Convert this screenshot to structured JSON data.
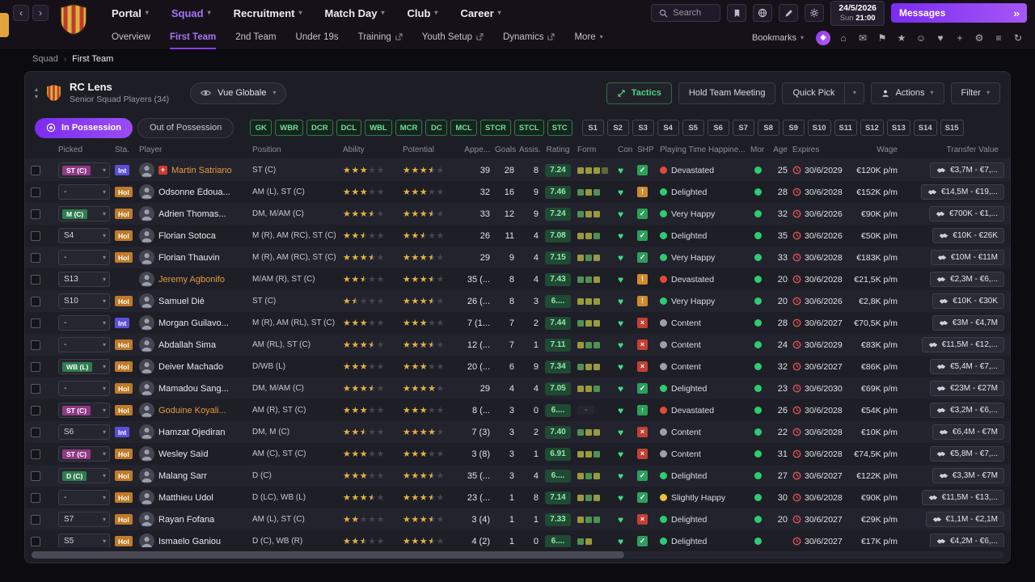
{
  "topbar": {
    "nav": [
      "Portal",
      "Squad",
      "Recruitment",
      "Match Day",
      "Club",
      "Career"
    ],
    "active": "Squad",
    "search_placeholder": "Search",
    "date": "24/5/2026",
    "day": "Sun",
    "time": "21:00",
    "messages_label": "Messages"
  },
  "subnav": {
    "items": [
      {
        "label": "Overview"
      },
      {
        "label": "First Team",
        "active": true
      },
      {
        "label": "2nd Team"
      },
      {
        "label": "Under 19s"
      },
      {
        "label": "Training",
        "ext": true
      },
      {
        "label": "Youth Setup",
        "ext": true
      },
      {
        "label": "Dynamics",
        "ext": true
      },
      {
        "label": "More",
        "chev": true
      }
    ],
    "bookmarks_label": "Bookmarks"
  },
  "quick_icons": [
    {
      "name": "home-icon",
      "glyph": "⌂"
    },
    {
      "name": "mail-icon",
      "glyph": "✉"
    },
    {
      "name": "flag-icon",
      "glyph": "⚑"
    },
    {
      "name": "star-icon",
      "glyph": "★"
    },
    {
      "name": "smiley-icon",
      "glyph": "☺"
    },
    {
      "name": "heart-icon",
      "glyph": "♥"
    },
    {
      "name": "medical-icon",
      "glyph": "+"
    },
    {
      "name": "gear-icon",
      "glyph": "⚙"
    },
    {
      "name": "menu-icon",
      "glyph": "≡"
    },
    {
      "name": "refresh-icon",
      "glyph": "↻"
    }
  ],
  "breadcrumb": {
    "parent": "Squad",
    "current": "First Team"
  },
  "panel_header": {
    "club_name": "RC Lens",
    "subtitle": "Senior Squad Players (34)",
    "view_selector": "Vue Globale",
    "tactics_label": "Tactics",
    "meeting_label": "Hold Team Meeting",
    "quick_pick_label": "Quick Pick",
    "actions_label": "Actions",
    "filter_label": "Filter"
  },
  "filters": {
    "in_possession": "In Possession",
    "out_possession": "Out of Possession",
    "positions": [
      "GK",
      "WBR",
      "DCR",
      "DCL",
      "WBL",
      "MCR",
      "DC",
      "MCL",
      "STCR",
      "STCL",
      "STC"
    ],
    "slots": [
      "S1",
      "S2",
      "S3",
      "S4",
      "S5",
      "S6",
      "S7",
      "S8",
      "S9",
      "S10",
      "S11",
      "S12",
      "S13",
      "S14",
      "S15"
    ]
  },
  "colors": {
    "accent_purple": "#8a3cf5",
    "accent_green": "#35c26b",
    "star_gold": "#e3b341",
    "rating_bg": "#1f4a33",
    "rating_text": "#93e8ac",
    "mood_red": "#e2493b",
    "mood_green": "#2ecc71",
    "mood_gray": "#9aa0a8",
    "mood_yellow": "#e9c13b"
  },
  "table": {
    "columns": [
      "",
      "Picked",
      "Sta.",
      "Player",
      "Position",
      "Ability",
      "Potential",
      "Appe...",
      "Goals",
      "Assis...",
      "Rating",
      "Form",
      "Con",
      "SHP",
      "Playing Time Happine...",
      "Mor",
      "Age",
      "Expires",
      "Wage",
      "Transfer Value"
    ],
    "rows": [
      {
        "picked": "ST (C)",
        "picked_type": "st",
        "sta": "Int",
        "name": "Martin Satriano",
        "name_color": "orange",
        "flag": "injury",
        "position": "ST (C)",
        "ability": 3,
        "potential": 3.5,
        "apps": "39",
        "goals": "28",
        "assists": "8",
        "rating": "7.24",
        "form": [
          "y",
          "y",
          "y",
          "d"
        ],
        "shp": "check",
        "happiness": "Devastated",
        "mood": "red",
        "age": "25",
        "expires": "30/6/2029",
        "wage": "€120K p/m",
        "value": "€3,7M - €7,..."
      },
      {
        "picked": "-",
        "picked_type": "none",
        "sta": "Hol",
        "name": "Odsonne Édoua...",
        "position": "AM (L), ST (C)",
        "ability": 3,
        "potential": 3,
        "apps": "32",
        "goals": "16",
        "assists": "9",
        "rating": "7.46",
        "form": [
          "g",
          "y",
          "g"
        ],
        "shp": "warn",
        "happiness": "Delighted",
        "mood": "green",
        "age": "28",
        "expires": "30/6/2028",
        "wage": "€152K p/m",
        "value": "€14,5M - €19,..."
      },
      {
        "picked": "M (C)",
        "picked_type": "pos",
        "sta": "Hol",
        "name": "Adrien Thomas...",
        "position": "DM, M/AM (C)",
        "ability": 3.5,
        "potential": 3.5,
        "apps": "33",
        "goals": "12",
        "assists": "9",
        "rating": "7.24",
        "form": [
          "g",
          "y",
          "y"
        ],
        "shp": "check",
        "happiness": "Very Happy",
        "mood": "green",
        "age": "32",
        "expires": "30/6/2026",
        "wage": "€90K p/m",
        "value": "€700K - €1,..."
      },
      {
        "picked": "S4",
        "picked_type": "slot",
        "sta": "Hol",
        "name": "Florian Sotoca",
        "position": "M (R), AM (RC), ST (C)",
        "ability": 2.5,
        "potential": 2.5,
        "apps": "26",
        "goals": "11",
        "assists": "4",
        "rating": "7.08",
        "form": [
          "y",
          "y",
          "g"
        ],
        "shp": "check",
        "happiness": "Delighted",
        "mood": "green",
        "age": "35",
        "expires": "30/6/2026",
        "wage": "€50K p/m",
        "value": "€10K - €26K"
      },
      {
        "picked": "-",
        "picked_type": "none",
        "sta": "Hol",
        "name": "Florian Thauvin",
        "position": "M (R), AM (RC), ST (C)",
        "ability": 3.5,
        "potential": 3.5,
        "apps": "29",
        "goals": "9",
        "assists": "4",
        "rating": "7.15",
        "form": [
          "y",
          "g",
          "y"
        ],
        "shp": "check",
        "happiness": "Very Happy",
        "mood": "green",
        "age": "33",
        "expires": "30/6/2028",
        "wage": "€183K p/m",
        "value": "€10M - €11M"
      },
      {
        "picked": "S13",
        "picked_type": "slot",
        "sta": "",
        "name": "Jeremy Agbonifo",
        "name_color": "orange",
        "position": "M/AM (R), ST (C)",
        "ability": 2.5,
        "potential": 3.5,
        "apps": "35 (...",
        "goals": "8",
        "assists": "4",
        "rating": "7.43",
        "form": [
          "g",
          "g",
          "y"
        ],
        "shp": "warn",
        "happiness": "Devastated",
        "mood": "red",
        "age": "20",
        "expires": "30/6/2028",
        "wage": "€21,5K p/m",
        "value": "€2,3M - €6,..."
      },
      {
        "picked": "S10",
        "picked_type": "slot",
        "sta": "Hol",
        "name": "Samuel Dié",
        "position": "ST (C)",
        "ability": 1.5,
        "potential": 3.5,
        "apps": "26 (...",
        "goals": "8",
        "assists": "3",
        "rating": "6....",
        "form": [
          "y",
          "y",
          "y"
        ],
        "shp": "warn",
        "happiness": "Very Happy",
        "mood": "green",
        "age": "20",
        "expires": "30/6/2026",
        "wage": "€2,8K p/m",
        "value": "€10K - €30K"
      },
      {
        "picked": "-",
        "picked_type": "none",
        "sta": "Int",
        "name": "Morgan Guilavo...",
        "position": "M (R), AM (RL), ST (C)",
        "ability": 3,
        "potential": 3,
        "apps": "7 (1...",
        "goals": "7",
        "assists": "2",
        "rating": "7.44",
        "form": [
          "g",
          "y",
          "y"
        ],
        "shp": "x",
        "happiness": "Content",
        "mood": "gray",
        "age": "28",
        "expires": "30/6/2027",
        "wage": "€70,5K p/m",
        "value": "€3M - €4,7M"
      },
      {
        "picked": "-",
        "picked_type": "none",
        "sta": "Hol",
        "name": "Abdallah Sima",
        "position": "AM (RL), ST (C)",
        "ability": 3.5,
        "potential": 3.5,
        "apps": "12 (...",
        "goals": "7",
        "assists": "1",
        "rating": "7.11",
        "form": [
          "y",
          "g",
          "g"
        ],
        "shp": "x",
        "happiness": "Content",
        "mood": "gray",
        "age": "24",
        "expires": "30/6/2029",
        "wage": "€83K p/m",
        "value": "€11,5M - €12,..."
      },
      {
        "picked": "WB (L)",
        "picked_type": "pos",
        "sta": "Hol",
        "name": "Deiver Machado",
        "position": "D/WB (L)",
        "ability": 3,
        "potential": 3,
        "apps": "20 (...",
        "goals": "6",
        "assists": "9",
        "rating": "7.34",
        "form": [
          "g",
          "y",
          "y"
        ],
        "shp": "x",
        "happiness": "Content",
        "mood": "gray",
        "age": "32",
        "expires": "30/6/2027",
        "wage": "€86K p/m",
        "value": "€5,4M - €7,..."
      },
      {
        "picked": "-",
        "picked_type": "none",
        "sta": "Hol",
        "name": "Mamadou Sang...",
        "position": "DM, M/AM (C)",
        "ability": 3.5,
        "potential": 4,
        "apps": "29",
        "goals": "4",
        "assists": "4",
        "rating": "7.05",
        "form": [
          "y",
          "y",
          "g"
        ],
        "shp": "check",
        "happiness": "Delighted",
        "mood": "green",
        "age": "23",
        "expires": "30/6/2030",
        "wage": "€69K p/m",
        "value": "€23M - €27M"
      },
      {
        "picked": "ST (C)",
        "picked_type": "st",
        "sta": "Hol",
        "name": "Goduine Koyali...",
        "name_color": "orange",
        "position": "AM (R), ST (C)",
        "ability": 3,
        "potential": 3,
        "apps": "8 (...",
        "goals": "3",
        "assists": "0",
        "rating": "6....",
        "form": "dash",
        "shp": "up",
        "happiness": "Devastated",
        "mood": "red",
        "age": "26",
        "expires": "30/6/2028",
        "wage": "€54K p/m",
        "value": "€3,2M - €6,..."
      },
      {
        "picked": "S6",
        "picked_type": "slot",
        "sta": "Int",
        "name": "Hamzat Ojediran",
        "position": "DM, M (C)",
        "ability": 2.5,
        "potential": 4,
        "apps": "7 (3)",
        "goals": "3",
        "assists": "2",
        "rating": "7.40",
        "form": [
          "g",
          "y",
          "y"
        ],
        "shp": "x",
        "happiness": "Content",
        "mood": "gray",
        "age": "22",
        "expires": "30/6/2028",
        "wage": "€10K p/m",
        "value": "€6,4M - €7M"
      },
      {
        "picked": "ST (C)",
        "picked_type": "st",
        "sta": "Hol",
        "name": "Wesley Saïd",
        "position": "AM (C), ST (C)",
        "ability": 3,
        "potential": 3,
        "apps": "3 (8)",
        "goals": "3",
        "assists": "1",
        "rating": "6.91",
        "form": [
          "y",
          "y",
          "g"
        ],
        "shp": "x",
        "happiness": "Content",
        "mood": "gray",
        "age": "31",
        "expires": "30/6/2028",
        "wage": "€74,5K p/m",
        "value": "€5,8M - €7,..."
      },
      {
        "picked": "D (C)",
        "picked_type": "pos",
        "sta": "Hol",
        "name": "Malang Sarr",
        "position": "D (C)",
        "ability": 3,
        "potential": 3.5,
        "apps": "35 (...",
        "goals": "3",
        "assists": "4",
        "rating": "6....",
        "form": [
          "y",
          "g",
          "y"
        ],
        "shp": "check",
        "happiness": "Delighted",
        "mood": "green",
        "age": "27",
        "expires": "30/6/2027",
        "wage": "€122K p/m",
        "value": "€3,3M - €7M"
      },
      {
        "picked": "-",
        "picked_type": "none",
        "sta": "Hol",
        "name": "Matthieu Udol",
        "position": "D (LC), WB (L)",
        "ability": 3.5,
        "potential": 3.5,
        "apps": "23 (...",
        "goals": "1",
        "assists": "8",
        "rating": "7.14",
        "form": [
          "y",
          "g",
          "y"
        ],
        "shp": "check",
        "happiness": "Slightly Happy",
        "mood": "yellow",
        "age": "30",
        "expires": "30/6/2028",
        "wage": "€90K p/m",
        "value": "€11,5M - €13,..."
      },
      {
        "picked": "S7",
        "picked_type": "slot",
        "sta": "Hol",
        "name": "Rayan Fofana",
        "position": "AM (L), ST (C)",
        "ability": 2,
        "potential": 3.5,
        "apps": "3 (4)",
        "goals": "1",
        "assists": "1",
        "rating": "7.33",
        "form": [
          "y",
          "g",
          "g"
        ],
        "shp": "x",
        "happiness": "Delighted",
        "mood": "green",
        "age": "20",
        "expires": "30/6/2027",
        "wage": "€29K p/m",
        "value": "€1,1M - €2,1M"
      },
      {
        "picked": "S5",
        "picked_type": "slot",
        "sta": "Hol",
        "name": "Ismaelo Ganiou",
        "position": "D (C), WB (R)",
        "ability": 2.5,
        "potential": 3.5,
        "apps": "4 (2)",
        "goals": "1",
        "assists": "0",
        "rating": "6....",
        "form": [
          "g",
          "y"
        ],
        "shp": "check",
        "happiness": "Delighted",
        "mood": "green",
        "age": "",
        "expires": "30/6/2027",
        "wage": "€17K p/m",
        "value": "€4,2M - €6,..."
      }
    ]
  }
}
